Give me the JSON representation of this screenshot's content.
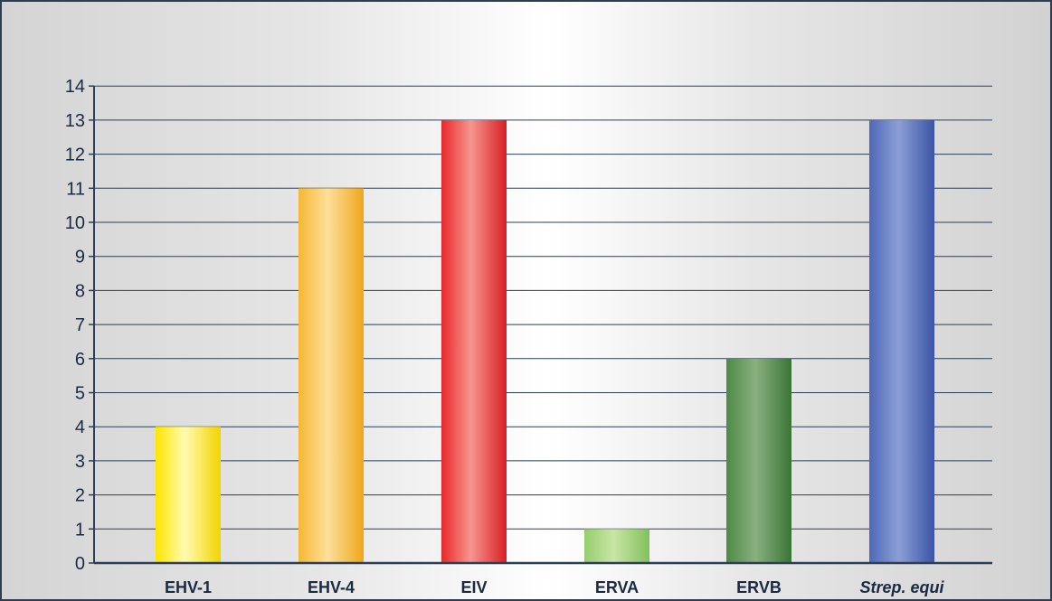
{
  "chart_data": {
    "type": "bar",
    "categories": [
      "EHV-1",
      "EHV-4",
      "EIV",
      "ERVA",
      "ERVB",
      "Strep. equi"
    ],
    "values": [
      4,
      11,
      13,
      1,
      6,
      13
    ],
    "ylim": [
      0,
      14
    ],
    "yticks": [
      0,
      1,
      2,
      3,
      4,
      5,
      6,
      7,
      8,
      9,
      10,
      11,
      12,
      13,
      14
    ],
    "grid": true,
    "title": "",
    "xlabel": "",
    "ylabel": "",
    "italic_categories": [
      "Strep. equi"
    ],
    "bar_colors": [
      {
        "light": "#fffbb0",
        "main": "#ffe600",
        "dark": "#f2d400"
      },
      {
        "light": "#fde09a",
        "main": "#f7b733",
        "dark": "#eea71a"
      },
      {
        "light": "#f6968f",
        "main": "#e8272a",
        "dark": "#d81e23"
      },
      {
        "light": "#c8e6a6",
        "main": "#96cd6e",
        "dark": "#83c05b"
      },
      {
        "light": "#89b07f",
        "main": "#4e8a46",
        "dark": "#3a7535"
      },
      {
        "light": "#8c9fd6",
        "main": "#4f67b8",
        "dark": "#3b54a6"
      }
    ],
    "axis_color": "#2c3e55",
    "text_color": "#1a2a44"
  }
}
